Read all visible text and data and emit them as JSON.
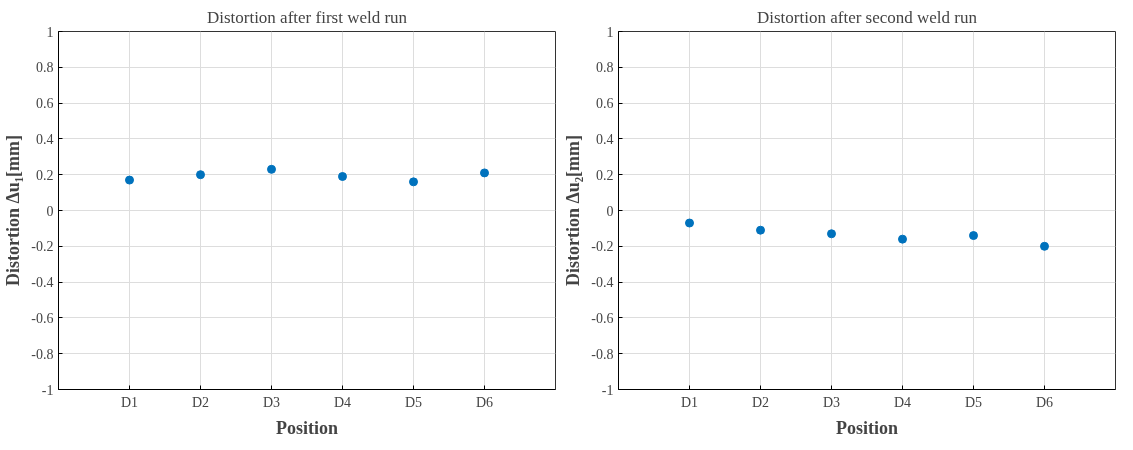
{
  "chart_data": [
    {
      "type": "scatter",
      "title": "Distortion after first weld run",
      "xlabel": "Position",
      "ylabel": "Distortion Δu₁[mm]",
      "categories": [
        "D1",
        "D2",
        "D3",
        "D4",
        "D5",
        "D6"
      ],
      "series": [
        {
          "color": "#0072bd",
          "values": [
            0.17,
            0.2,
            0.23,
            0.19,
            0.16,
            0.21
          ]
        }
      ],
      "ylim": [
        -1,
        1
      ],
      "yticks": [
        {
          "value": -1,
          "label": "-1"
        },
        -0.8,
        -0.6,
        -0.4,
        -0.2,
        0,
        0.2,
        0.4,
        0.6,
        0.8,
        1
      ],
      "grid": true,
      "marker": "circle"
    },
    {
      "type": "scatter",
      "title": "Distortion after second weld run",
      "xlabel": "Position",
      "ylabel": "Distortion Δu₂[mm]",
      "categories": [
        "D1",
        "D2",
        "D3",
        "D4",
        "D5",
        "D6"
      ],
      "series": [
        {
          "color": "#0072bd",
          "values": [
            -0.07,
            -0.11,
            -0.13,
            -0.16,
            -0.14,
            -0.2
          ]
        }
      ],
      "ylim": [
        -1,
        1
      ],
      "yticks": [
        {
          "value": -1,
          "label": "-1"
        },
        -0.8,
        -0.6,
        -0.4,
        -0.2,
        0,
        0.2,
        0.4,
        0.6,
        0.8,
        1
      ],
      "grid": true,
      "marker": "circle"
    }
  ]
}
